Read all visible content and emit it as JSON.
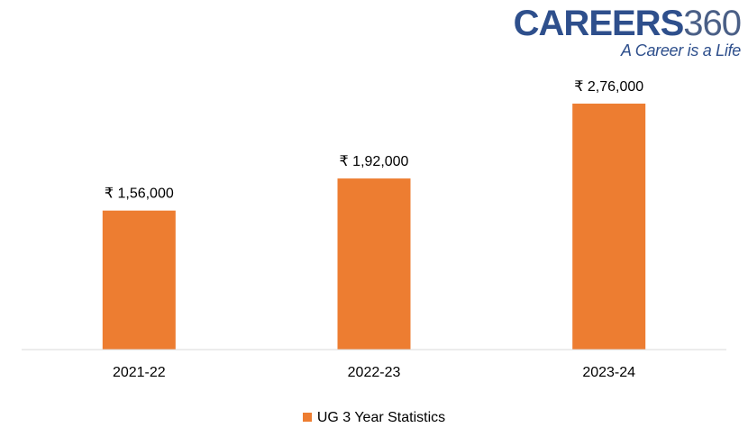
{
  "brand": {
    "name": "CAREERS",
    "number": "360",
    "tagline": "A Career is a Life"
  },
  "colors": {
    "bar": "#ed7d31",
    "axis": "#d9d9d9"
  },
  "chart_data": {
    "type": "bar",
    "categories": [
      "2021-22",
      "2022-23",
      "2023-24"
    ],
    "series": [
      {
        "name": "UG 3 Year Statistics",
        "values": [
          156000,
          192000,
          276000
        ],
        "labels": [
          "₹ 1,56,000",
          "₹ 1,92,000",
          "₹ 2,76,000"
        ]
      }
    ],
    "title": "",
    "xlabel": "",
    "ylabel": "",
    "ylim": [
      0,
      300000
    ],
    "grid": false,
    "legend": "bottom"
  }
}
